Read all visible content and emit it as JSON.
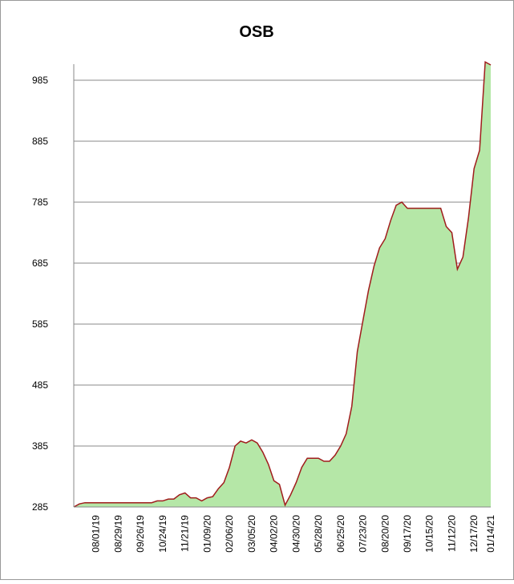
{
  "chart_data": {
    "type": "area",
    "title": "OSB",
    "categories": [
      null,
      null,
      null,
      null,
      "08/01/19",
      null,
      null,
      null,
      "08/29/19",
      null,
      null,
      null,
      "09/26/19",
      null,
      null,
      null,
      "10/24/19",
      null,
      null,
      null,
      "11/21/19",
      null,
      null,
      null,
      "01/09/20",
      null,
      null,
      null,
      "02/06/20",
      null,
      null,
      null,
      "03/05/20",
      null,
      null,
      null,
      "04/02/20",
      null,
      null,
      null,
      "04/30/20",
      null,
      null,
      null,
      "05/28/20",
      null,
      null,
      null,
      "06/25/20",
      null,
      null,
      null,
      "07/23/20",
      null,
      null,
      null,
      "08/20/20",
      null,
      null,
      null,
      "09/17/20",
      null,
      null,
      null,
      "10/15/20",
      null,
      null,
      null,
      "11/12/20",
      null,
      null,
      null,
      "12/17/20",
      null,
      null,
      "01/14/21"
    ],
    "values": [
      285,
      290,
      292,
      292,
      292,
      292,
      292,
      292,
      292,
      292,
      292,
      292,
      292,
      292,
      292,
      295,
      295,
      298,
      298,
      305,
      308,
      300,
      300,
      295,
      300,
      302,
      315,
      325,
      350,
      385,
      393,
      390,
      395,
      390,
      375,
      355,
      328,
      322,
      288,
      305,
      325,
      350,
      365,
      365,
      365,
      360,
      360,
      370,
      385,
      405,
      450,
      540,
      590,
      640,
      680,
      710,
      725,
      755,
      780,
      785,
      775,
      775,
      775,
      775,
      775,
      775,
      775,
      745,
      735,
      675,
      695,
      760,
      840,
      870,
      1015,
      1010
    ],
    "color": "#b5e7a7",
    "line_color": "#a01c1c",
    "ylim": [
      285,
      1035
    ],
    "yticks": [
      285,
      385,
      485,
      585,
      685,
      785,
      885,
      985
    ],
    "grid": true
  }
}
